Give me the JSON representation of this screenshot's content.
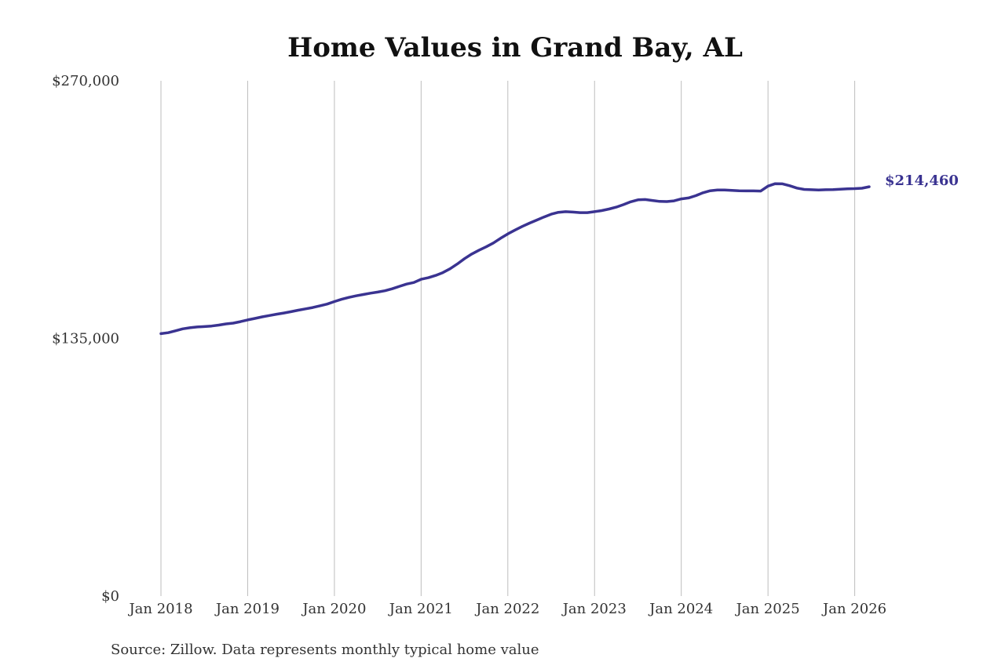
{
  "chart_data": {
    "type": "line",
    "title": "Home Values in Grand Bay, AL",
    "source": "Source: Zillow. Data represents monthly typical home value",
    "x": [
      "2018-01",
      "2018-02",
      "2018-03",
      "2018-04",
      "2018-05",
      "2018-06",
      "2018-07",
      "2018-08",
      "2018-09",
      "2018-10",
      "2018-11",
      "2018-12",
      "2019-01",
      "2019-02",
      "2019-03",
      "2019-04",
      "2019-05",
      "2019-06",
      "2019-07",
      "2019-08",
      "2019-09",
      "2019-10",
      "2019-11",
      "2019-12",
      "2020-01",
      "2020-02",
      "2020-03",
      "2020-04",
      "2020-05",
      "2020-06",
      "2020-07",
      "2020-08",
      "2020-09",
      "2020-10",
      "2020-11",
      "2020-12",
      "2021-01",
      "2021-02",
      "2021-03",
      "2021-04",
      "2021-05",
      "2021-06",
      "2021-07",
      "2021-08",
      "2021-09",
      "2021-10",
      "2021-11",
      "2021-12",
      "2022-01",
      "2022-02",
      "2022-03",
      "2022-04",
      "2022-05",
      "2022-06",
      "2022-07",
      "2022-08",
      "2022-09",
      "2022-10",
      "2022-11",
      "2022-12",
      "2023-01",
      "2023-02",
      "2023-03",
      "2023-04",
      "2023-05",
      "2023-06",
      "2023-07",
      "2023-08",
      "2023-09",
      "2023-10",
      "2023-11",
      "2023-12",
      "2024-01",
      "2024-02",
      "2024-03",
      "2024-04",
      "2024-05",
      "2024-06",
      "2024-07",
      "2024-08",
      "2024-09",
      "2024-10",
      "2024-11",
      "2024-12",
      "2025-01",
      "2025-02",
      "2025-03",
      "2025-04",
      "2025-05",
      "2025-06",
      "2025-07",
      "2025-08",
      "2025-09",
      "2025-10",
      "2025-11",
      "2025-12",
      "2026-01",
      "2026-02",
      "2026-03"
    ],
    "series": [
      {
        "name": "Typical home value",
        "color": "#3a3391",
        "values": [
          137500,
          138000,
          139000,
          140000,
          140600,
          141000,
          141200,
          141500,
          142000,
          142600,
          143000,
          143800,
          144700,
          145500,
          146300,
          147000,
          147700,
          148300,
          149000,
          149800,
          150500,
          151200,
          152100,
          153000,
          154300,
          155500,
          156500,
          157300,
          158000,
          158700,
          159300,
          160000,
          161000,
          162300,
          163500,
          164300,
          166000,
          166800,
          168000,
          169500,
          171500,
          174000,
          176800,
          179200,
          181200,
          183000,
          185000,
          187500,
          189800,
          191800,
          193700,
          195400,
          197000,
          198600,
          200100,
          201100,
          201400,
          201200,
          200900,
          200900,
          201400,
          202000,
          202800,
          203800,
          205100,
          206600,
          207600,
          207800,
          207300,
          206800,
          206700,
          207100,
          208100,
          208600,
          209800,
          211300,
          212400,
          212800,
          212800,
          212600,
          212400,
          212300,
          212300,
          212200,
          214800,
          216100,
          216000,
          215000,
          213800,
          213100,
          212900,
          212800,
          212900,
          213000,
          213200,
          213400,
          213500,
          213700,
          214460
        ],
        "value_labels": [
          null,
          null,
          null,
          null,
          null,
          null,
          null,
          null,
          null,
          null,
          null,
          null,
          null,
          null,
          null,
          null,
          null,
          null,
          null,
          null,
          null,
          null,
          null,
          null,
          null,
          null,
          null,
          null,
          null,
          null,
          null,
          null,
          null,
          null,
          null,
          null,
          null,
          null,
          null,
          null,
          null,
          null,
          null,
          null,
          null,
          null,
          null,
          null,
          null,
          null,
          null,
          null,
          null,
          null,
          null,
          null,
          null,
          null,
          null,
          null,
          null,
          null,
          null,
          null,
          null,
          null,
          null,
          null,
          null,
          null,
          null,
          null,
          null,
          null,
          null,
          null,
          null,
          null,
          null,
          null,
          null,
          null,
          null,
          null,
          null,
          null,
          null,
          null,
          null,
          null,
          null,
          null,
          null,
          null,
          null,
          null,
          null,
          null,
          "$214,460"
        ]
      }
    ],
    "xlim": [
      "2018-01",
      "2026-03"
    ],
    "xticks": [
      {
        "value": "2018-01",
        "label": "Jan 2018"
      },
      {
        "value": "2019-01",
        "label": "Jan 2019"
      },
      {
        "value": "2020-01",
        "label": "Jan 2020"
      },
      {
        "value": "2021-01",
        "label": "Jan 2021"
      },
      {
        "value": "2022-01",
        "label": "Jan 2022"
      },
      {
        "value": "2023-01",
        "label": "Jan 2023"
      },
      {
        "value": "2024-01",
        "label": "Jan 2024"
      },
      {
        "value": "2025-01",
        "label": "Jan 2025"
      },
      {
        "value": "2026-01",
        "label": "Jan 2026"
      }
    ],
    "ylim": [
      0,
      270000
    ],
    "yticks": [
      {
        "value": 0,
        "label": "$0"
      },
      {
        "value": 135000,
        "label": "$135,000"
      },
      {
        "value": 270000,
        "label": "$270,000"
      }
    ],
    "grid": "x"
  }
}
